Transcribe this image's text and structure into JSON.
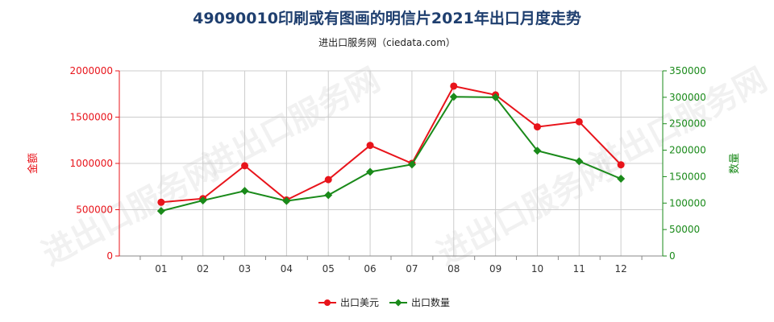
{
  "title": "49090010印刷或有图画的明信片2021年出口月度走势",
  "subtitle": "进出口服务网（ciedata.com）",
  "watermark": "进出口服务网",
  "colors": {
    "series_amount": "#e8141b",
    "series_quantity": "#1a8a1a",
    "left_axis": "#e8141b",
    "right_axis": "#1a8a1a",
    "grid": "#cccccc",
    "title": "#1f3f6f"
  },
  "chart_data": {
    "type": "line",
    "categories": [
      "01",
      "02",
      "03",
      "04",
      "05",
      "06",
      "07",
      "08",
      "09",
      "10",
      "11",
      "12"
    ],
    "y_left": {
      "label": "金额",
      "min": 0,
      "max": 2000000,
      "ticks": [
        "0",
        "500000",
        "1000000",
        "1500000",
        "2000000"
      ],
      "tick_values": [
        0,
        500000,
        1000000,
        1500000,
        2000000
      ]
    },
    "y_right": {
      "label": "数量",
      "min": 0,
      "max": 350000,
      "ticks": [
        "0",
        "50000",
        "100000",
        "150000",
        "200000",
        "250000",
        "300000",
        "350000"
      ],
      "tick_values": [
        0,
        50000,
        100000,
        150000,
        200000,
        250000,
        300000,
        350000
      ]
    },
    "series": [
      {
        "name": "出口美元",
        "axis": "left",
        "color": "#e8141b",
        "values": [
          580000,
          620000,
          975000,
          605000,
          825000,
          1195000,
          1000000,
          1835000,
          1740000,
          1395000,
          1450000,
          985000
        ]
      },
      {
        "name": "出口数量",
        "axis": "right",
        "color": "#1a8a1a",
        "values": [
          85000,
          105000,
          123000,
          104000,
          115000,
          159000,
          173000,
          301000,
          300000,
          199000,
          179000,
          146000
        ]
      }
    ],
    "grid": true,
    "legend_position": "bottom-center"
  }
}
